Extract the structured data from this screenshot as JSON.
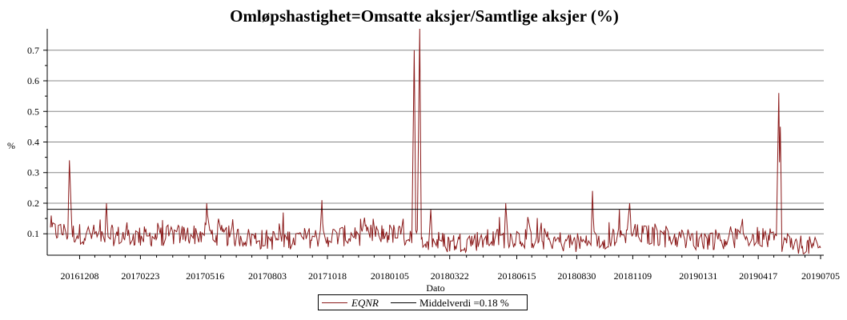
{
  "chart_data": {
    "type": "line",
    "title": "Omløpshastighet=Omsatte aksjer/Samtlige aksjer (%)",
    "xlabel": "Dato",
    "ylabel": "%",
    "ylim": [
      0.03,
      0.77
    ],
    "yticks": [
      0.1,
      0.2,
      0.3,
      0.4,
      0.5,
      0.6,
      0.7
    ],
    "ytick_labels": [
      "0.1",
      "0.2",
      "0.3",
      "0.4",
      "0.5",
      "0.6",
      "0.7"
    ],
    "xticks": [
      "20161208",
      "20170223",
      "20170516",
      "20170803",
      "20171018",
      "20180105",
      "20180322",
      "20180615",
      "20180830",
      "20181109",
      "20190131",
      "20190417",
      "20190705"
    ],
    "grid": true,
    "legend_position": "bottom-center",
    "series": [
      {
        "name": "EQNR",
        "color": "#8b1a1a",
        "x": [
          "20161101",
          "20161208",
          "20170223",
          "20170516",
          "20170803",
          "20171018",
          "20180105",
          "20180322",
          "20180615",
          "20180830",
          "20181109",
          "20190131",
          "20190417",
          "20190705"
        ],
        "values": [
          0.11,
          0.1,
          0.09,
          0.1,
          0.08,
          0.09,
          0.1,
          0.07,
          0.09,
          0.07,
          0.1,
          0.08,
          0.09,
          0.05
        ],
        "peaks": [
          {
            "x": "20161125",
            "value": 0.34
          },
          {
            "x": "20170111",
            "value": 0.2
          },
          {
            "x": "20170518",
            "value": 0.2
          },
          {
            "x": "20171011",
            "value": 0.21
          },
          {
            "x": "20180205",
            "value": 0.7
          },
          {
            "x": "20180212",
            "value": 0.77
          },
          {
            "x": "20180226",
            "value": 0.18
          },
          {
            "x": "20180601",
            "value": 0.2
          },
          {
            "x": "20180919",
            "value": 0.24
          },
          {
            "x": "20181105",
            "value": 0.2
          },
          {
            "x": "20190513",
            "value": 0.56
          },
          {
            "x": "20190515",
            "value": 0.45
          }
        ]
      },
      {
        "name": "Middelverdi =0.18 %",
        "color": "#000000",
        "value": 0.18
      }
    ]
  }
}
